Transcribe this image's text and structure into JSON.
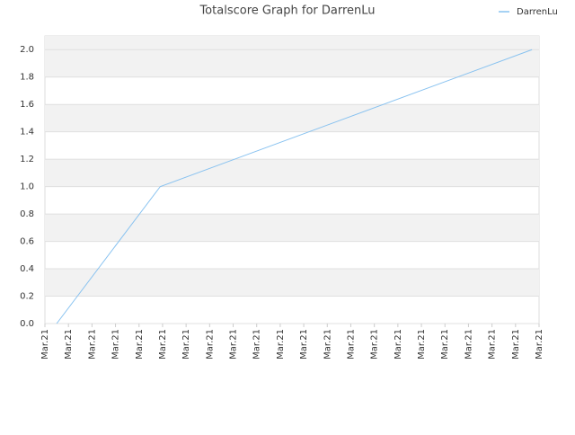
{
  "chart_data": {
    "type": "line",
    "title": "Totalscore Graph for DarrenLu",
    "xticks": [
      {
        "value": 0,
        "label": "Mar.21"
      },
      {
        "value": 1,
        "label": "Mar.21"
      },
      {
        "value": 2,
        "label": "Mar.21"
      },
      {
        "value": 3,
        "label": "Mar.21"
      },
      {
        "value": 4,
        "label": "Mar.21"
      },
      {
        "value": 5,
        "label": "Mar.21"
      },
      {
        "value": 6,
        "label": "Mar.21"
      },
      {
        "value": 7,
        "label": "Mar.21"
      },
      {
        "value": 8,
        "label": "Mar.21"
      },
      {
        "value": 9,
        "label": "Mar.21"
      },
      {
        "value": 10,
        "label": "Mar.21"
      },
      {
        "value": 11,
        "label": "Mar.21"
      },
      {
        "value": 12,
        "label": "Mar.21"
      },
      {
        "value": 13,
        "label": "Mar.21"
      },
      {
        "value": 14,
        "label": "Mar.21"
      },
      {
        "value": 15,
        "label": "Mar.21"
      },
      {
        "value": 16,
        "label": "Mar.21"
      },
      {
        "value": 17,
        "label": "Mar.21"
      },
      {
        "value": 18,
        "label": "Mar.21"
      },
      {
        "value": 19,
        "label": "Mar.21"
      },
      {
        "value": 20,
        "label": "Mar.21"
      },
      {
        "value": 21,
        "label": "Mar.21"
      }
    ],
    "xlim": [
      0,
      21
    ],
    "x": [
      0.5,
      4.9,
      20.7
    ],
    "series": [
      {
        "name": "DarrenLu",
        "color": "#88c2f0",
        "values": [
          0,
          1,
          2
        ]
      }
    ],
    "ylim": [
      0,
      2.1
    ],
    "yticks": [
      {
        "value": 0,
        "label": "0.0"
      },
      0.2,
      0.4,
      0.6,
      0.8,
      {
        "value": 1,
        "label": "1.0"
      },
      1.2,
      1.4,
      1.6,
      1.8,
      {
        "value": 2,
        "label": "2.0"
      }
    ],
    "grid": true,
    "legend": "top-right"
  }
}
